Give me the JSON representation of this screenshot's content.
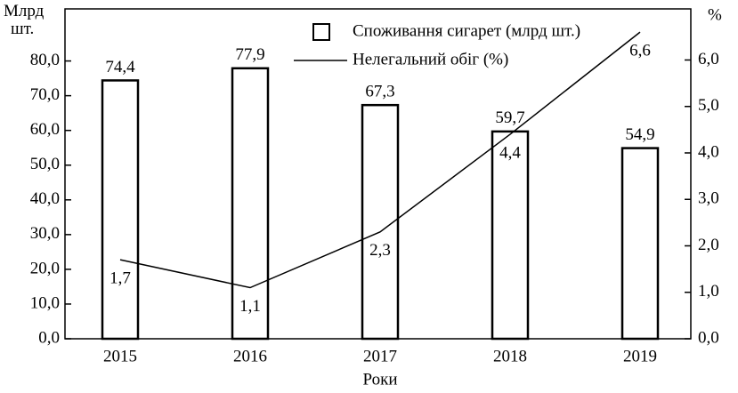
{
  "chart_data": {
    "type": "bar_line",
    "y_label": "Млрд шт.",
    "y2_label": "%",
    "x_label": "Роки",
    "categories": [
      "2015",
      "2016",
      "2017",
      "2018",
      "2019"
    ],
    "series": [
      {
        "name": "Споживання сигарет (млрд шт.)",
        "type": "bar",
        "color": "#000000",
        "values": [
          74.4,
          77.9,
          67.3,
          59.7,
          54.9
        ],
        "value_labels": [
          "74,4",
          "77,9",
          "67,3",
          "59,7",
          "54,9"
        ]
      },
      {
        "name": "Нелегальний обіг (%)",
        "type": "line",
        "axis": "y2",
        "color": "#000000",
        "values": [
          1.7,
          1.1,
          2.3,
          4.4,
          6.6
        ],
        "value_labels": [
          "1,7",
          "1,1",
          "2,3",
          "4,4",
          "6,6"
        ]
      }
    ],
    "ylim": [
      0,
      95
    ],
    "yticks": [
      {
        "value": 0,
        "label": "0,0"
      },
      {
        "value": 10,
        "label": "10,0"
      },
      {
        "value": 20,
        "label": "20,0"
      },
      {
        "value": 30,
        "label": "30,0"
      },
      {
        "value": 40,
        "label": "40,0"
      },
      {
        "value": 50,
        "label": "50,0"
      },
      {
        "value": 60,
        "label": "60,0"
      },
      {
        "value": 70,
        "label": "70,0"
      },
      {
        "value": 80,
        "label": "80,0"
      }
    ],
    "y2lim": [
      0,
      7.1
    ],
    "y2ticks": [
      {
        "value": 0,
        "label": "0,0"
      },
      {
        "value": 1,
        "label": "1,0"
      },
      {
        "value": 2,
        "label": "2,0"
      },
      {
        "value": 3,
        "label": "3,0"
      },
      {
        "value": 4,
        "label": "4,0"
      },
      {
        "value": 5,
        "label": "5,0"
      },
      {
        "value": 6,
        "label": "6,0"
      }
    ],
    "legend": "top"
  }
}
